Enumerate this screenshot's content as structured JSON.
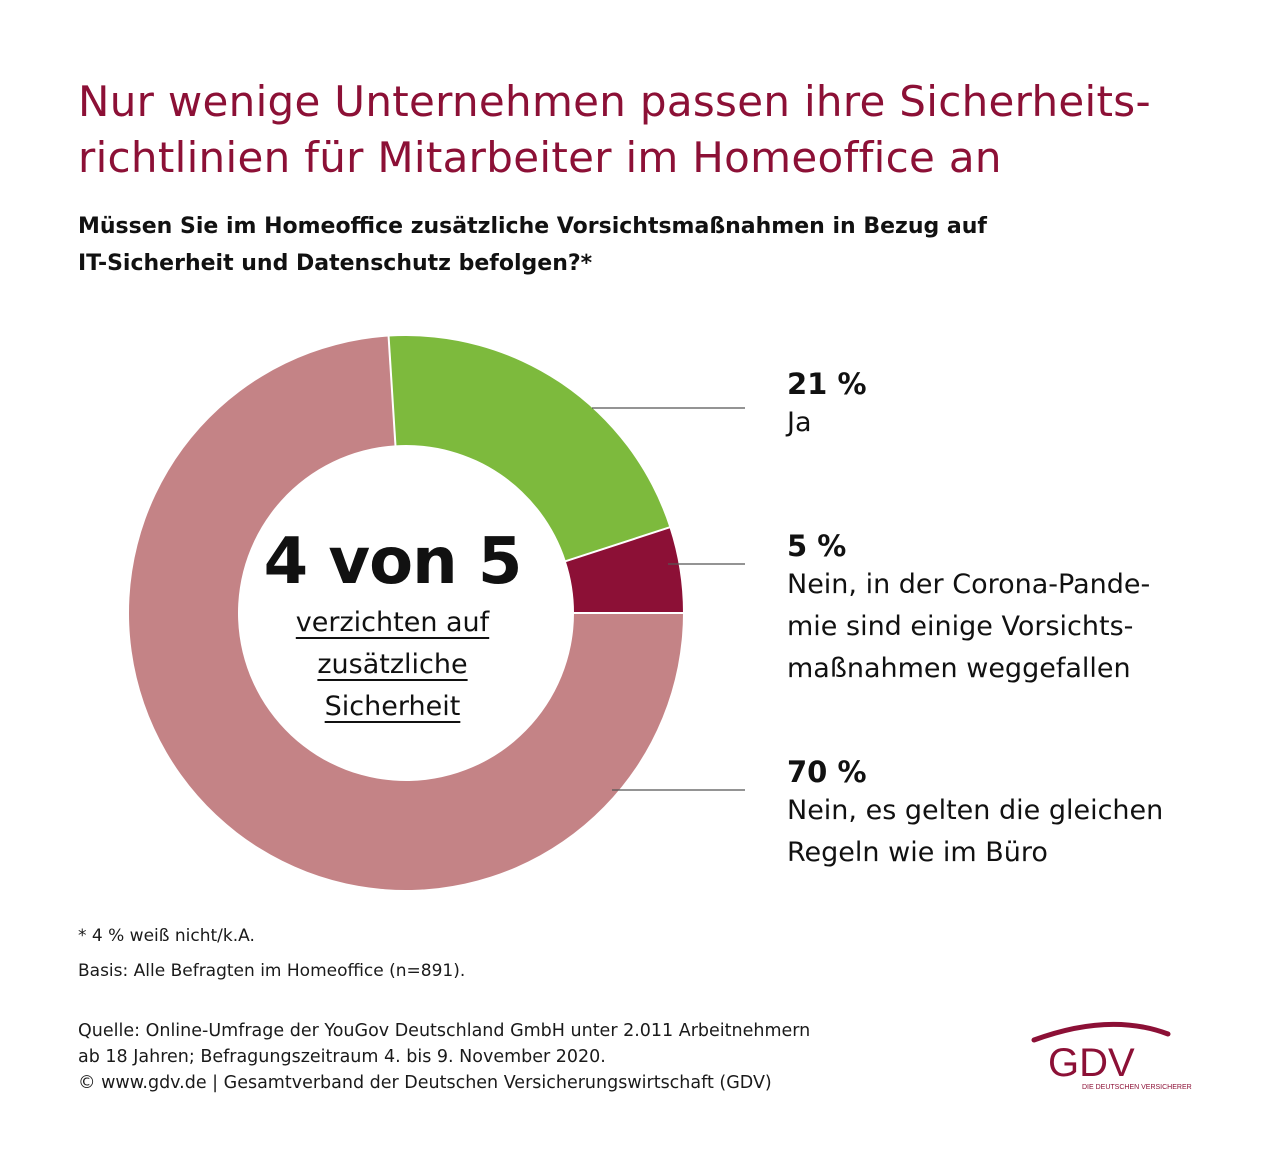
{
  "header": {
    "title_lines": [
      "Nur wenige Unternehmen passen ihre Sicherheits-",
      "richtlinien für Mitarbeiter im Homeoffice an"
    ],
    "subtitle_lines": [
      "Müssen Sie im Homeoffice zusätzliche Vorsichtsmaßnahmen in Bezug auf",
      "IT-Sicherheit und Datenschutz befolgen?*"
    ]
  },
  "center": {
    "headline": "4 von 5",
    "sub_lines": [
      "verzichten auf",
      "zusätzliche",
      "Sicherheit"
    ]
  },
  "chart_data": {
    "type": "pie",
    "title": "",
    "series": [
      {
        "values": [
          21,
          5,
          70
        ],
        "categories": [
          "Ja",
          "Nein, in der Corona-Pandemie sind einige Vorsichtsmaßnahmen weggefallen",
          "Nein, es gelten die gleichen Regeln wie im Büro"
        ],
        "value_labels": [
          "21 %",
          "5 %",
          "70 %"
        ]
      }
    ],
    "colors": [
      "#7dba3d",
      "#8c1036",
      "#c48386"
    ],
    "donut": true,
    "note": "* 4 % weiß nicht/k.A."
  },
  "legend": [
    {
      "pct": "21 %",
      "label_lines": [
        "Ja"
      ]
    },
    {
      "pct": "5 %",
      "label_lines": [
        "Nein, in der Corona-Pande-",
        "mie sind einige Vorsichts-",
        "maßnahmen weggefallen"
      ]
    },
    {
      "pct": "70 %",
      "label_lines": [
        "Nein, es gelten die gleichen",
        "Regeln wie im Büro"
      ]
    }
  ],
  "footnotes": {
    "note": "* 4 % weiß nicht/k.A.",
    "basis": "Basis: Alle Befragten im Homeoffice (n=891)."
  },
  "source_lines": [
    "Quelle: Online-Umfrage der YouGov Deutschland GmbH unter 2.011 Arbeitnehmern",
    "ab 18 Jahren; Befragungszeitraum 4. bis 9. November 2020.",
    "© www.gdv.de | Gesamtverband der Deutschen Versicherungswirtschaft (GDV)"
  ],
  "logo": {
    "text": "GDV",
    "tagline": "DIE DEUTSCHEN VERSICHERER",
    "color": "#8c1036"
  }
}
